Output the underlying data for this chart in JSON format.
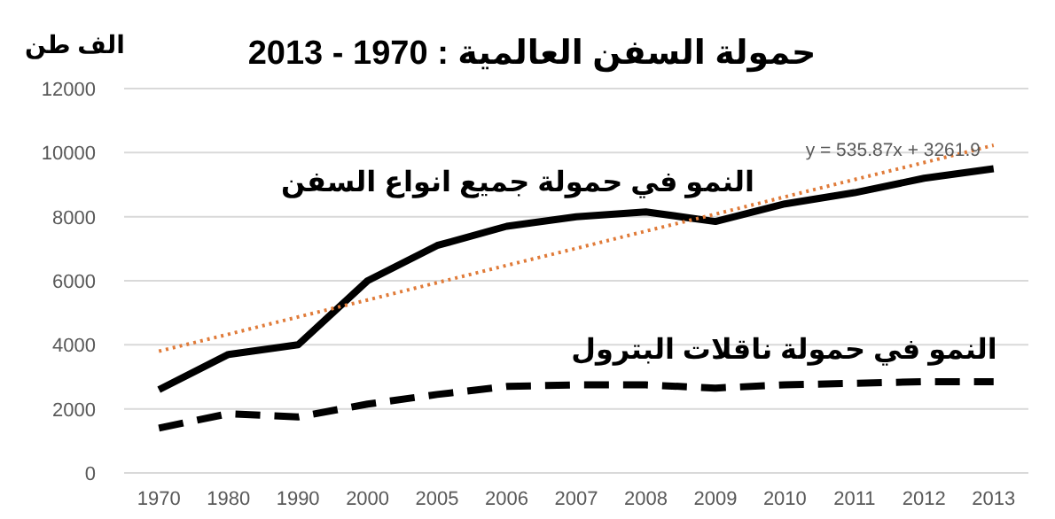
{
  "chart_data": {
    "type": "line",
    "title": "حمولة السفن العالمية : 1970 - 2013",
    "ylabel": "الف طن",
    "categories": [
      "1970",
      "1980",
      "1990",
      "2000",
      "2005",
      "2006",
      "2007",
      "2008",
      "2009",
      "2010",
      "2011",
      "2012",
      "2013"
    ],
    "series": [
      {
        "name": "النمو في حمولة جميع انواع السفن",
        "color": "#000000",
        "line_style": "solid",
        "values": [
          2600,
          3700,
          4000,
          6000,
          7100,
          7700,
          8000,
          8150,
          7850,
          8400,
          8750,
          9200,
          9500
        ]
      },
      {
        "name": "النمو في حمولة ناقلات البترول",
        "color": "#000000",
        "line_style": "dashed",
        "values": [
          1400,
          1850,
          1750,
          2150,
          2450,
          2700,
          2750,
          2750,
          2650,
          2750,
          2800,
          2850,
          2850
        ]
      },
      {
        "color": "#e07b39",
        "line_style": "dotted",
        "values": [
          3800,
          4330,
          4870,
          5400,
          5940,
          6480,
          7010,
          7550,
          8080,
          8620,
          9160,
          9690,
          10230
        ]
      }
    ],
    "annotations": [
      "y = 535.87x + 3261.9"
    ],
    "ylim": [
      0,
      12000
    ],
    "yticks": [
      0,
      2000,
      4000,
      6000,
      8000,
      10000,
      12000
    ],
    "grid": "y",
    "legend": false
  }
}
